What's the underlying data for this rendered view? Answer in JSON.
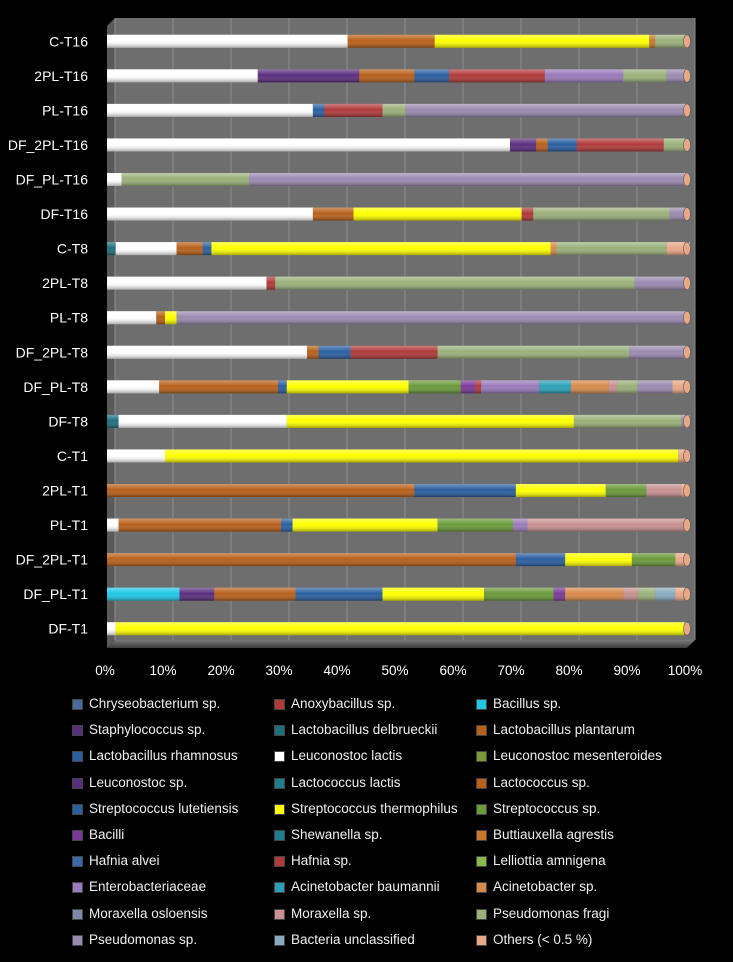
{
  "chart_data": {
    "type": "bar",
    "orientation": "horizontal",
    "stacked": "percent",
    "title": "",
    "xlabel": "",
    "ylabel": "",
    "xlim": [
      0,
      100
    ],
    "x_ticks": [
      "0%",
      "10%",
      "20%",
      "30%",
      "40%",
      "50%",
      "60%",
      "70%",
      "80%",
      "90%",
      "100%"
    ],
    "categories": [
      "C-T16",
      "2PL-T16",
      "PL-T16",
      "DF_2PL-T16",
      "DF_PL-T16",
      "DF-T16",
      "C-T8",
      "2PL-T8",
      "PL-T8",
      "DF_2PL-T8",
      "DF_PL-T8",
      "DF-T8",
      "C-T1",
      "2PL-T1",
      "PL-T1",
      "DF_2PL-T1",
      "DF_PL-T1",
      "DF-T1"
    ],
    "series": [
      {
        "name": "Chryseobacterium sp.",
        "color": "#4a6a9a",
        "values": [
          0,
          0,
          0,
          0,
          0,
          0,
          0,
          0,
          0,
          0,
          0,
          0,
          0,
          0,
          0,
          0,
          0,
          0
        ]
      },
      {
        "name": "Anoxybacillus sp.",
        "color": "#b03a3a",
        "values": [
          0,
          0,
          0,
          0,
          0,
          0,
          0,
          0,
          0,
          0,
          0,
          0,
          0,
          0,
          0,
          0,
          0,
          0
        ]
      },
      {
        "name": "Bacillus sp.",
        "color": "#1ec8e6",
        "values": [
          0,
          0,
          0,
          0,
          0,
          0,
          0,
          0,
          0,
          0,
          0,
          0,
          0,
          0,
          0,
          0,
          12.5,
          0
        ]
      },
      {
        "name": "Staphylococcus sp.",
        "color": "#5a2e7e",
        "values": [
          0,
          0,
          0,
          0,
          0,
          0,
          0,
          0,
          0,
          0,
          0,
          0,
          0,
          0,
          0,
          0,
          6,
          0
        ]
      },
      {
        "name": "Lactobacillus delbrueckii",
        "color": "#1f6e7e",
        "values": [
          0,
          0,
          0,
          0,
          0,
          0,
          1.5,
          0,
          0,
          0,
          0,
          2,
          0,
          0,
          0,
          0,
          0,
          0
        ]
      },
      {
        "name": "Lactobacillus plantarum",
        "color": "#b8601a",
        "values": [
          0,
          0,
          0,
          0,
          0,
          0,
          0,
          0,
          0,
          0,
          0,
          0,
          0,
          0,
          0,
          0,
          0,
          0
        ]
      },
      {
        "name": "Lactobacillus rhamnosus",
        "color": "#2a5fa0",
        "values": [
          0,
          0,
          0,
          0,
          0,
          0,
          0,
          0,
          0,
          0,
          0,
          0,
          0,
          0,
          0,
          0,
          0,
          0
        ]
      },
      {
        "name": "Leuconostoc lactis",
        "color": "#ffffff",
        "values": [
          41.5,
          26,
          35.5,
          69.5,
          2.5,
          35.5,
          10.5,
          27.5,
          8.5,
          34.5,
          9,
          29,
          10,
          0,
          2,
          0,
          0,
          1.5
        ]
      },
      {
        "name": "Leuconostoc mesenteroides",
        "color": "#7a9a3a",
        "values": [
          0,
          0,
          0,
          0,
          0,
          0,
          0,
          0,
          0,
          0,
          0,
          0,
          0,
          0,
          0,
          0,
          0,
          0
        ]
      },
      {
        "name": "Leuconostoc sp.",
        "color": "#5a2e7e",
        "values": [
          0,
          17.5,
          0,
          4.5,
          0,
          0,
          0,
          0,
          0,
          0,
          0,
          0,
          0,
          0,
          0,
          0,
          0,
          0
        ]
      },
      {
        "name": "Lactococcus lactis",
        "color": "#1f7e8e",
        "values": [
          0,
          0,
          0,
          0,
          0,
          0,
          0,
          0,
          0,
          0,
          0,
          0,
          0,
          0,
          0,
          0,
          0,
          0
        ]
      },
      {
        "name": "Lactococcus sp.",
        "color": "#b8601a",
        "values": [
          15,
          9.5,
          0,
          2,
          0,
          7,
          4.5,
          0,
          1.5,
          2,
          20.5,
          0,
          0,
          53,
          28,
          70.5,
          14,
          0
        ]
      },
      {
        "name": "Streptococcus lutetiensis",
        "color": "#2a5fa0",
        "values": [
          0,
          6,
          2,
          5,
          0,
          0,
          1.5,
          0,
          0,
          5.5,
          1.5,
          0,
          0,
          17.5,
          2,
          8.5,
          15,
          0
        ]
      },
      {
        "name": "Streptococcus thermophilus",
        "color": "#ffff00",
        "values": [
          37,
          0,
          0,
          0,
          0,
          29,
          58.5,
          0,
          2,
          0,
          21,
          49.5,
          88.5,
          15.5,
          25,
          11.5,
          17.5,
          98
        ]
      },
      {
        "name": "Streptococcus sp.",
        "color": "#6a9a3a",
        "values": [
          0,
          0,
          0,
          0,
          0,
          0,
          0,
          0,
          0,
          0,
          9,
          0,
          0,
          7,
          13,
          7.5,
          12,
          0
        ]
      },
      {
        "name": "Bacilli",
        "color": "#7a3a9a",
        "values": [
          0,
          0,
          0,
          0,
          0,
          0,
          0,
          0,
          0,
          0,
          2.5,
          0,
          0,
          0,
          0,
          0,
          2,
          0
        ]
      },
      {
        "name": "Shewanella sp.",
        "color": "#1f7e8e",
        "values": [
          0,
          0,
          0,
          0,
          0,
          0,
          0,
          0,
          0,
          0,
          0,
          0,
          0,
          0,
          0,
          0,
          0,
          0
        ]
      },
      {
        "name": "Buttiauxella agrestis",
        "color": "#c8782a",
        "values": [
          1,
          0,
          0,
          0,
          0,
          0,
          0,
          0,
          0,
          0,
          0,
          0,
          0,
          0,
          0,
          0,
          0,
          0
        ]
      },
      {
        "name": "Hafnia alvei",
        "color": "#3a6aaa",
        "values": [
          0,
          0,
          0,
          0,
          0,
          0,
          0,
          0,
          0,
          0,
          0,
          0,
          0,
          0,
          0,
          0,
          0,
          0
        ]
      },
      {
        "name": "Hafnia sp.",
        "color": "#b03a3a",
        "values": [
          0,
          16.5,
          10,
          15,
          0,
          2,
          0,
          1.5,
          0,
          15,
          1,
          0,
          0,
          0,
          0,
          0,
          0,
          0
        ]
      },
      {
        "name": "Lelliottia amnigena",
        "color": "#8ab84a",
        "values": [
          0,
          0,
          0,
          0,
          0,
          0,
          0,
          0,
          0,
          0,
          0,
          0,
          0,
          0,
          0,
          0,
          0,
          0
        ]
      },
      {
        "name": "Enterobacteriaceae",
        "color": "#9a7aba",
        "values": [
          0,
          13.5,
          0,
          0,
          0,
          0,
          0,
          0,
          0,
          0,
          10,
          0,
          0,
          0,
          2.5,
          0,
          0,
          0
        ]
      },
      {
        "name": "Acinetobacter baumannii",
        "color": "#2aa0b8",
        "values": [
          0,
          0,
          0,
          0,
          0,
          0,
          0,
          0,
          0,
          0,
          5.5,
          0,
          0,
          0,
          0,
          0,
          0,
          0
        ]
      },
      {
        "name": "Acinetobacter sp.",
        "color": "#d88a4a",
        "values": [
          0,
          0,
          0,
          0,
          0,
          0,
          1,
          0,
          0,
          0,
          6.5,
          0,
          0,
          0,
          0,
          0,
          10,
          0
        ]
      },
      {
        "name": "Moraxella osloensis",
        "color": "#7a8aaa",
        "values": [
          0,
          0,
          0,
          0,
          0,
          0,
          0,
          0,
          0,
          0,
          0,
          0,
          0,
          0,
          0,
          0,
          0,
          0
        ]
      },
      {
        "name": "Moraxella sp.",
        "color": "#c89090",
        "values": [
          0,
          0,
          0,
          0,
          0,
          0,
          0,
          0,
          0,
          0,
          1.5,
          0,
          0,
          6,
          27,
          0,
          2.5,
          0
        ]
      },
      {
        "name": "Pseudomonas fragi",
        "color": "#9ab07a",
        "values": [
          5,
          7.5,
          4,
          4,
          22,
          23.5,
          19,
          62,
          0,
          33,
          3.5,
          18.5,
          0,
          0,
          0,
          0,
          3,
          0
        ]
      },
      {
        "name": "Pseudomonas sp.",
        "color": "#9a8ab0",
        "values": [
          0,
          3.5,
          48,
          0,
          75,
          3,
          0,
          9,
          88,
          9.5,
          6,
          1.5,
          0,
          0,
          0,
          0,
          0,
          0
        ]
      },
      {
        "name": "Bacteria unclassified",
        "color": "#8aaac0",
        "values": [
          0,
          0,
          0,
          0,
          0,
          0,
          0,
          0,
          0,
          0,
          0,
          0,
          0,
          0,
          0,
          0,
          3.5,
          0
        ]
      },
      {
        "name": "Others (< 0.5 %)",
        "color": "#e8a888",
        "values": [
          0.5,
          0,
          0.5,
          0,
          0.5,
          0,
          4,
          0,
          0,
          0.5,
          2.5,
          0,
          1.5,
          1,
          0.5,
          2,
          2,
          0.5
        ]
      }
    ]
  }
}
